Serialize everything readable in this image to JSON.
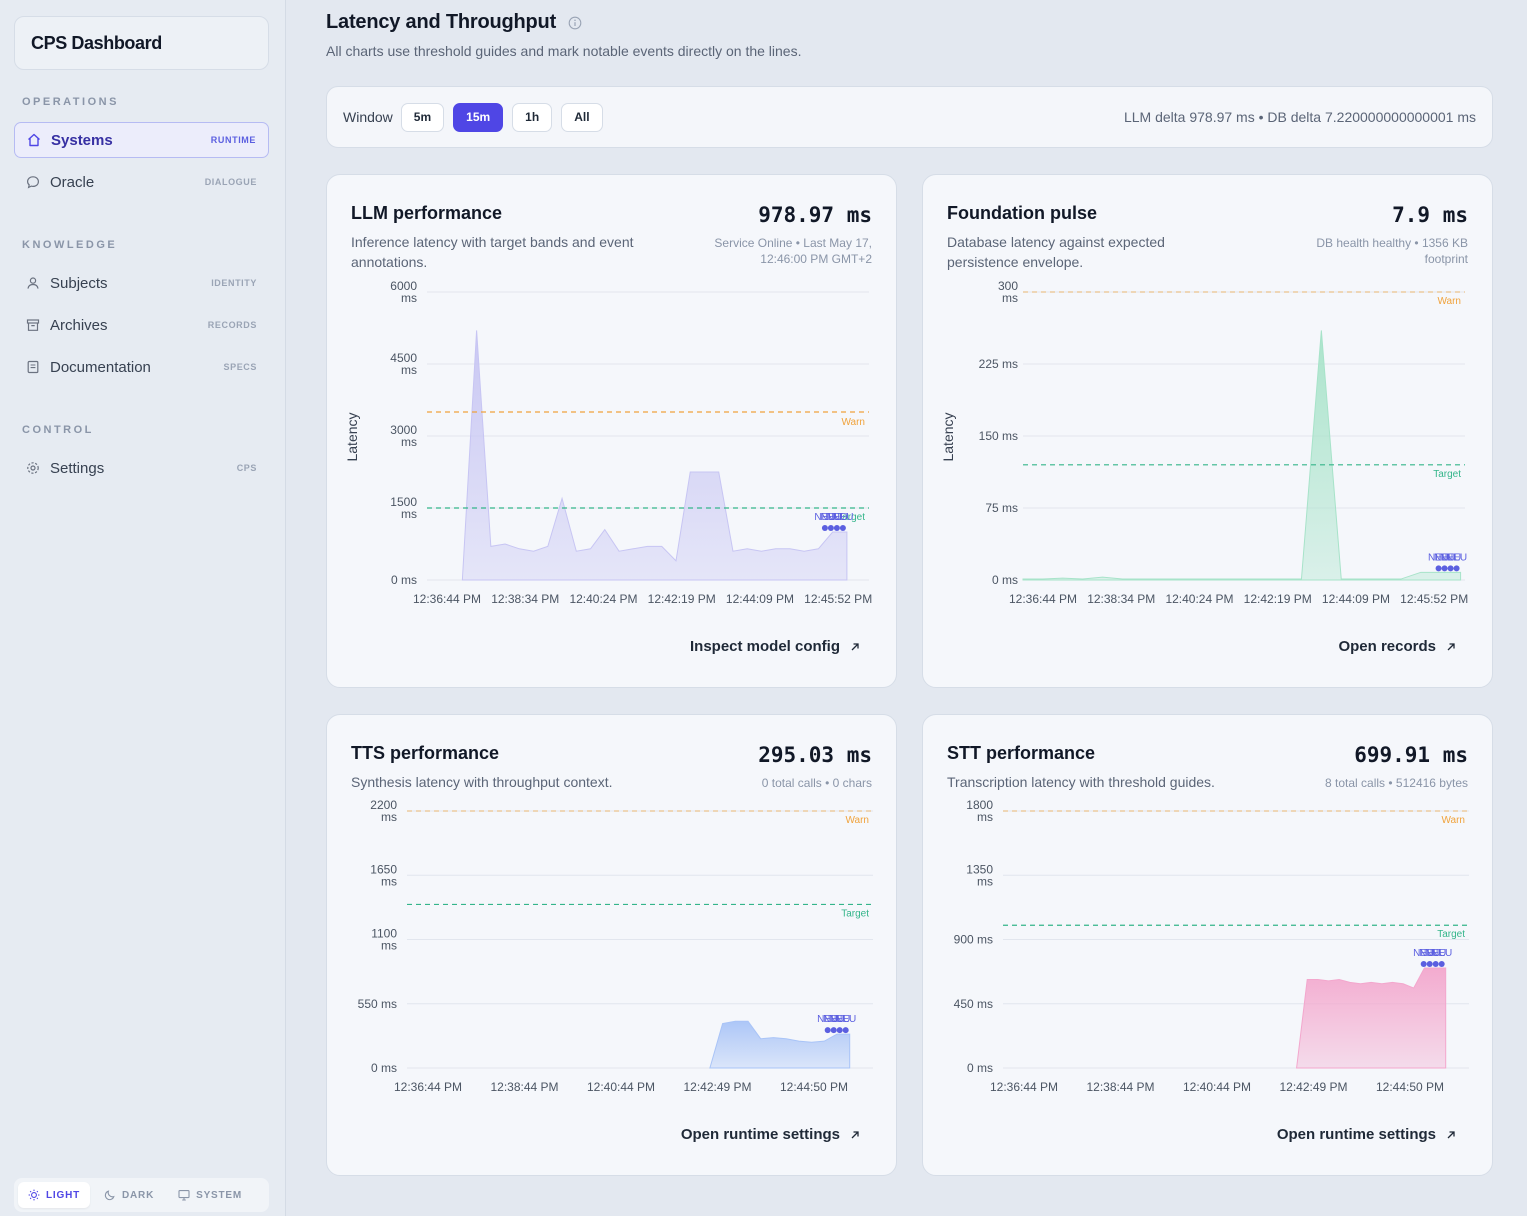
{
  "sidebar": {
    "brand": "CPS Dashboard",
    "sections": [
      {
        "label": "OPERATIONS"
      },
      {
        "label": "KNOWLEDGE"
      },
      {
        "label": "CONTROL"
      }
    ],
    "items": [
      {
        "label": "Systems",
        "tag": "RUNTIME",
        "icon": "home-icon",
        "active": true
      },
      {
        "label": "Oracle",
        "tag": "DIALOGUE",
        "icon": "chat-bubble-icon"
      },
      {
        "label": "Subjects",
        "tag": "IDENTITY",
        "icon": "user-icon"
      },
      {
        "label": "Archives",
        "tag": "RECORDS",
        "icon": "archive-icon"
      },
      {
        "label": "Documentation",
        "tag": "SPECS",
        "icon": "document-icon"
      },
      {
        "label": "Settings",
        "tag": "CPS",
        "icon": "gear-icon"
      }
    ],
    "theme": {
      "light": "LIGHT",
      "dark": "DARK",
      "system": "SYSTEM",
      "selected": "LIGHT"
    }
  },
  "header": {
    "title": "Latency and Throughput",
    "subtitle": "All charts use threshold guides and mark notable events directly on the lines."
  },
  "controls": {
    "window_label": "Window",
    "windows": [
      "5m",
      "15m",
      "1h",
      "All"
    ],
    "selected_window": "15m",
    "delta_text": "LLM delta 978.97 ms • DB delta 7.220000000000001 ms"
  },
  "colors": {
    "accent": "#4f46e5",
    "warn": "#f0a33c",
    "target": "#34b58a",
    "llm": "#c7c5f3",
    "db": "#a7e3c9",
    "tts": "#a9c4f7",
    "stt": "#f3a7cd"
  },
  "cards": {
    "llm": {
      "title": "LLM performance",
      "desc": "Inference latency with target bands and event annotations.",
      "value": "978.97 ms",
      "meta": "Service Online • Last May 17, 12:46:00 PM GMT+2",
      "link": "Inspect model config"
    },
    "db": {
      "title": "Foundation pulse",
      "desc": "Database latency against expected persistence envelope.",
      "value": "7.9 ms",
      "meta": "DB health healthy • 1356 KB footprint",
      "link": "Open records"
    },
    "tts": {
      "title": "TTS performance",
      "desc": "Synthesis latency with throughput context.",
      "value": "295.03 ms",
      "meta": "0 total calls • 0 chars",
      "link": "Open runtime settings"
    },
    "stt": {
      "title": "STT performance",
      "desc": "Transcription latency with threshold guides.",
      "value": "699.91 ms",
      "meta": "8 total calls • 512416 bytes",
      "link": "Open runtime settings"
    }
  },
  "chart_data": [
    {
      "type": "area",
      "ylabel": "Latency",
      "yticks": [
        "0 ms",
        "1500 ms",
        "3000 ms",
        "4500 ms",
        "6000 ms"
      ],
      "ylim": [
        0,
        6000
      ],
      "xticks": [
        "12:36:44 PM",
        "12:38:34 PM",
        "12:40:24 PM",
        "12:42:19 PM",
        "12:44:09 PM",
        "12:45:52 PM"
      ],
      "warn": 3500,
      "target": 1500,
      "warn_label": "Warn",
      "target_label": "Target",
      "values": [
        0,
        5200,
        700,
        750,
        650,
        600,
        700,
        1700,
        600,
        650,
        1050,
        600,
        650,
        700,
        700,
        400,
        2250,
        2250,
        2250,
        600,
        650,
        600,
        650,
        650,
        600,
        650,
        1000,
        1000
      ],
      "events": [
        "NEU",
        "NEU",
        "NEU",
        "NEU"
      ],
      "color": "#c7c5f3"
    },
    {
      "type": "area",
      "ylabel": "Latency",
      "yticks": [
        "0 ms",
        "75 ms",
        "150 ms",
        "225 ms",
        "300 ms"
      ],
      "ylim": [
        0,
        300
      ],
      "xticks": [
        "12:36:44 PM",
        "12:38:34 PM",
        "12:40:24 PM",
        "12:42:19 PM",
        "12:44:09 PM",
        "12:45:52 PM"
      ],
      "warn": 300,
      "target": 120,
      "warn_label": "Warn",
      "target_label": "Target",
      "values": [
        1,
        1,
        2,
        1,
        3,
        1,
        1,
        1,
        1,
        1,
        1,
        1,
        1,
        1,
        1,
        260,
        1,
        1,
        1,
        1,
        8,
        8,
        8
      ],
      "events": [
        "NEU",
        "NEU",
        "NEU",
        "NEU"
      ],
      "color": "#a7e3c9"
    },
    {
      "type": "area",
      "ylabel": "",
      "yticks": [
        "0 ms",
        "550 ms",
        "1100 ms",
        "1650 ms",
        "2200 ms"
      ],
      "ylim": [
        0,
        2200
      ],
      "xticks": [
        "12:36:44 PM",
        "12:38:44 PM",
        "12:40:44 PM",
        "12:42:49 PM",
        "12:44:50 PM"
      ],
      "warn": 2200,
      "target": 1400,
      "warn_label": "Warn",
      "target_label": "Target",
      "values": [
        0,
        380,
        400,
        400,
        250,
        260,
        250,
        230,
        220,
        230,
        290,
        290
      ],
      "events": [
        "NEU",
        "NEU",
        "NEU",
        "NEU"
      ],
      "color": "#a9c4f7"
    },
    {
      "type": "area",
      "ylabel": "",
      "yticks": [
        "0 ms",
        "450 ms",
        "900 ms",
        "1350 ms",
        "1800 ms"
      ],
      "ylim": [
        0,
        1800
      ],
      "xticks": [
        "12:36:44 PM",
        "12:38:44 PM",
        "12:40:44 PM",
        "12:42:49 PM",
        "12:44:50 PM"
      ],
      "warn": 1800,
      "target": 1000,
      "warn_label": "Warn",
      "target_label": "Target",
      "values": [
        0,
        620,
        620,
        610,
        620,
        600,
        590,
        600,
        590,
        600,
        590,
        560,
        700,
        700,
        700
      ],
      "events": [
        "NEU",
        "NEU",
        "NEU",
        "NEU"
      ],
      "color": "#f3a7cd"
    }
  ]
}
